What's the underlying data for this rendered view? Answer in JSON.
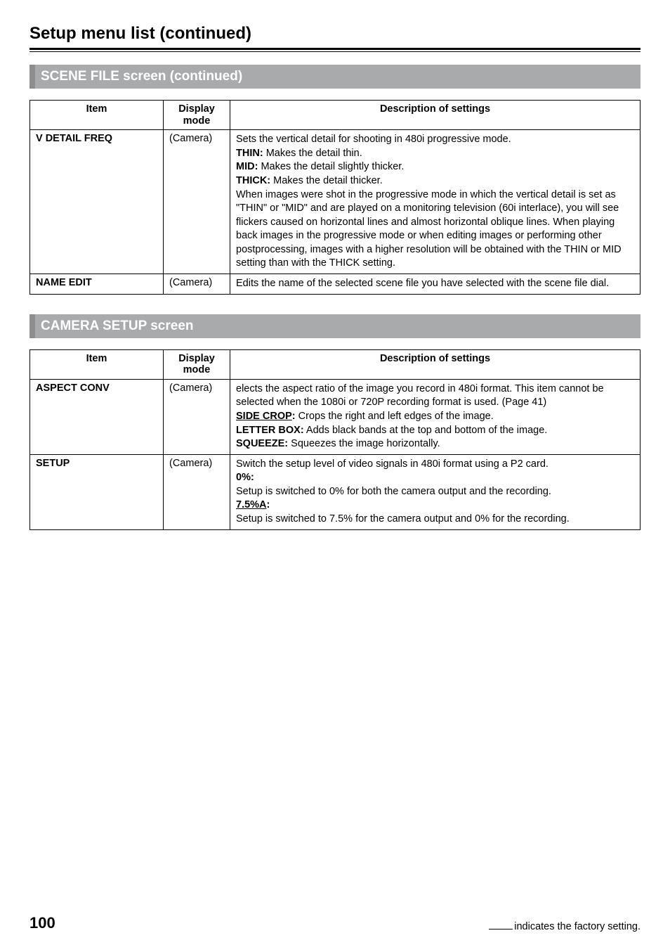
{
  "page": {
    "title": "Setup menu list (continued)",
    "number": "100",
    "factory_note": "indicates the factory setting."
  },
  "sections": [
    {
      "heading": "SCENE FILE screen (continued)",
      "table": {
        "headers": {
          "item": "Item",
          "mode_l1": "Display",
          "mode_l2": "mode",
          "desc": "Description of settings"
        },
        "rows": [
          {
            "item": "V DETAIL FREQ",
            "mode": "(Camera)",
            "desc_html": "Sets the vertical detail for shooting in 480i progressive mode.<br><b>THIN:</b> Makes the detail thin.<br><b>MID:</b> Makes the detail slightly thicker.<br><b>THICK:</b> Makes the detail thicker.<br>When images were shot in the progressive mode in which the vertical detail is set as \"THIN\" or \"MID\" and are played on a monitoring television (60i interlace), you will see flickers caused on horizontal lines and almost horizontal oblique lines. When playing back images in the progressive mode or when editing images or performing other postprocessing, images with a higher resolution will be obtained with the THIN or MID setting than with the THICK setting."
          },
          {
            "item": "NAME EDIT",
            "mode": "(Camera)",
            "desc_html": "Edits the name of the selected scene file you have selected with the scene file dial."
          }
        ]
      }
    },
    {
      "heading": "CAMERA SETUP screen",
      "table": {
        "headers": {
          "item": "Item",
          "mode_l1": "Display",
          "mode_l2": "mode",
          "desc": "Description of settings"
        },
        "rows": [
          {
            "item": "ASPECT CONV",
            "mode": "(Camera)",
            "desc_html": "elects the aspect ratio of the image you record in 480i format. This item cannot be selected when the 1080i or 720P recording format is used. (Page 41)<br><b><span class=\"u\">SIDE CROP</span>:</b> Crops the right and left edges of the image.<br><b>LETTER BOX:</b> Adds black bands at the top and bottom of the image.<br><b>SQUEEZE:</b> Squeezes the image horizontally."
          },
          {
            "item": "SETUP",
            "mode": "(Camera)",
            "desc_html": "Switch the setup level of video signals in 480i format using a P2 card.<br><b>0%:</b><br>Setup is switched to 0% for both the camera output and the recording.<br><b><span class=\"u\">7.5%A</span>:</b><br>Setup is switched to 7.5% for the camera output and 0% for the recording."
          }
        ]
      }
    }
  ]
}
